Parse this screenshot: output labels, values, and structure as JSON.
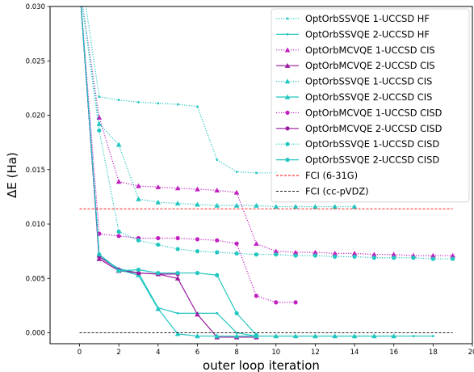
{
  "chart_data": {
    "type": "line",
    "title": "",
    "xlabel": "outer loop iteration",
    "ylabel": "ΔE (Ha)",
    "xlim": [
      -1.5,
      20
    ],
    "ylim": [
      -0.001,
      0.03
    ],
    "xticks": [
      0,
      2,
      4,
      6,
      8,
      10,
      12,
      14,
      16,
      18,
      20
    ],
    "yticks": [
      0.0,
      0.005,
      0.01,
      0.015,
      0.02,
      0.025,
      0.03
    ],
    "xtick_labels": [
      "0",
      "2",
      "4",
      "6",
      "8",
      "10",
      "12",
      "14",
      "16",
      "18",
      "20"
    ],
    "ytick_labels": [
      "0.000",
      "0.005",
      "0.010",
      "0.015",
      "0.020",
      "0.025",
      "0.030"
    ],
    "legend_position": "top-right",
    "grid": false,
    "series": [
      {
        "name": "OptOrbSSVQE 1-UCCSD HF",
        "color": "#20c6c0",
        "dash": "dotted",
        "marker": "small",
        "x": [
          0,
          1,
          2,
          3,
          4,
          5,
          6,
          7,
          8,
          9,
          10
        ],
        "y": [
          0.034,
          0.0217,
          0.0214,
          0.0212,
          0.0211,
          0.021,
          0.0208,
          0.0159,
          0.0148,
          0.0147,
          0.0147
        ]
      },
      {
        "name": "OptOrbSSVQE 2-UCCSD HF",
        "color": "#20c6c0",
        "dash": "solid",
        "marker": "small",
        "x": [
          0,
          1,
          2,
          3,
          4,
          5,
          6,
          7,
          8,
          9,
          10,
          11,
          12,
          13,
          14,
          15,
          16,
          17,
          18
        ],
        "y": [
          0.032,
          0.007,
          0.0059,
          0.0055,
          0.0023,
          0.0018,
          0.0018,
          0.0018,
          0.0,
          -0.0003,
          -0.0003,
          -0.0003,
          -0.0003,
          -0.0003,
          -0.0003,
          -0.0003,
          -0.0003,
          -0.0003,
          -0.0003
        ]
      },
      {
        "name": "OptOrbMCVQE 1-UCCSD CIS",
        "color": "#c020c0",
        "dash": "dotted",
        "marker": "triangle",
        "x": [
          0,
          1,
          2,
          3,
          4,
          5,
          6,
          7,
          8,
          9,
          10,
          11,
          12,
          13,
          14,
          15,
          16,
          17,
          18,
          19
        ],
        "y": [
          0.032,
          0.0198,
          0.0139,
          0.0135,
          0.0134,
          0.0133,
          0.0132,
          0.0131,
          0.0129,
          0.0082,
          0.0075,
          0.0074,
          0.0074,
          0.0073,
          0.0073,
          0.0072,
          0.0072,
          0.0071,
          0.0071,
          0.0071
        ]
      },
      {
        "name": "OptOrbMCVQE 2-UCCSD CIS",
        "color": "#9a1aa0",
        "dash": "solid",
        "marker": "triangle",
        "x": [
          0,
          1,
          2,
          3,
          4,
          5,
          6,
          7,
          8,
          9
        ],
        "y": [
          0.032,
          0.0068,
          0.0057,
          0.0055,
          0.0054,
          0.005,
          0.0017,
          -0.0004,
          -0.0004,
          -0.0004
        ]
      },
      {
        "name": "OptOrbSSVQE 1-UCCSD CIS",
        "color": "#20c6c0",
        "dash": "dotted",
        "marker": "triangle",
        "x": [
          0,
          1,
          2,
          3,
          4,
          5,
          6,
          7,
          8,
          9,
          10,
          11,
          12,
          13,
          14
        ],
        "y": [
          0.032,
          0.0192,
          0.0173,
          0.0123,
          0.012,
          0.0119,
          0.0118,
          0.0117,
          0.0117,
          0.0117,
          0.0116,
          0.0116,
          0.0116,
          0.0116,
          0.0116
        ]
      },
      {
        "name": "OptOrbSSVQE 2-UCCSD CIS",
        "color": "#20c6c0",
        "dash": "solid",
        "marker": "triangle",
        "x": [
          0,
          1,
          2,
          3,
          4,
          5,
          6,
          7,
          8,
          9,
          10,
          11,
          12,
          13,
          14,
          15,
          16
        ],
        "y": [
          0.032,
          0.0072,
          0.0058,
          0.0053,
          0.0022,
          -0.0001,
          -0.0003,
          -0.0003,
          -0.0003,
          -0.0003,
          -0.0003,
          -0.0003,
          -0.0003,
          -0.0003,
          -0.0003,
          -0.0003,
          -0.0003
        ]
      },
      {
        "name": "OptOrbMCVQE 1-UCCSD CISD",
        "color": "#c020c0",
        "dash": "dotted",
        "marker": "circle",
        "x": [
          0,
          1,
          2,
          3,
          4,
          5,
          6,
          7,
          8,
          9,
          10,
          11
        ],
        "y": [
          0.032,
          0.0091,
          0.0089,
          0.0087,
          0.0087,
          0.0087,
          0.0086,
          0.0085,
          0.0082,
          0.0034,
          0.0028,
          0.0028
        ]
      },
      {
        "name": "OptOrbMCVQE 2-UCCSD CISD",
        "color": "#9a1aa0",
        "dash": "solid",
        "marker": "circle",
        "x": [
          0,
          1,
          2,
          3,
          4,
          5
        ],
        "y": [
          0.032,
          0.007,
          0.0058,
          0.0055,
          0.0054,
          0.0054
        ]
      },
      {
        "name": "OptOrbSSVQE 1-UCCSD CISD",
        "color": "#20c6c0",
        "dash": "dotted",
        "marker": "circle",
        "x": [
          0,
          1,
          2,
          3,
          4,
          5,
          6,
          7,
          8,
          9,
          10,
          11,
          12,
          13,
          14,
          15,
          16,
          17,
          18,
          19
        ],
        "y": [
          0.032,
          0.0186,
          0.0093,
          0.0085,
          0.0081,
          0.0077,
          0.0075,
          0.0074,
          0.0073,
          0.0072,
          0.0072,
          0.0071,
          0.0071,
          0.007,
          0.007,
          0.0069,
          0.0069,
          0.0069,
          0.0068,
          0.0068
        ]
      },
      {
        "name": "OptOrbSSVQE 2-UCCSD CISD",
        "color": "#20c6c0",
        "dash": "solid",
        "marker": "circle",
        "x": [
          0,
          1,
          2,
          3,
          4,
          5,
          6,
          7,
          8,
          9
        ],
        "y": [
          0.032,
          0.0072,
          0.0057,
          0.0058,
          0.0055,
          0.0055,
          0.0055,
          0.0053,
          0.0018,
          -0.0002
        ]
      },
      {
        "name": "FCI (6-31G)",
        "color": "#ff0000",
        "dash": "dashed",
        "marker": "none",
        "x": [
          0,
          19
        ],
        "y": [
          0.0114,
          0.0114
        ]
      },
      {
        "name": "FCI (cc-pVDZ)",
        "color": "#000000",
        "dash": "dashed",
        "marker": "none",
        "x": [
          0,
          19
        ],
        "y": [
          0.0,
          0.0
        ]
      }
    ]
  }
}
